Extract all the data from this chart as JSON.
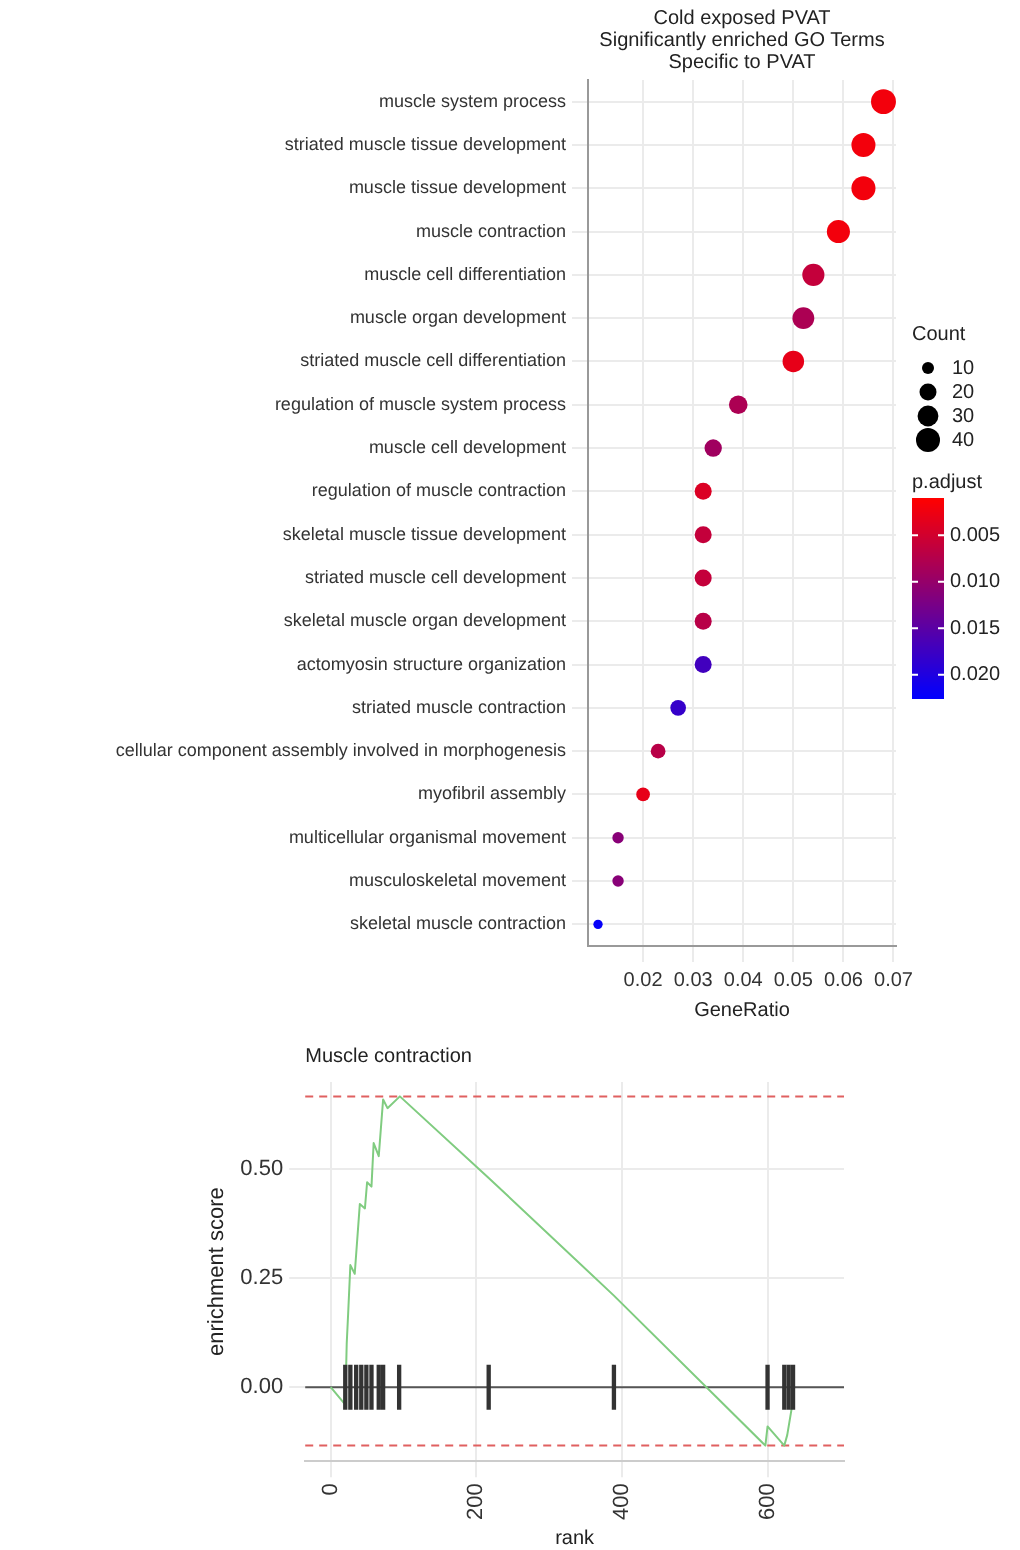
{
  "chart_data": [
    {
      "type": "bubble",
      "title": "Cold exposed PVAT\nSignificantly enriched GO Terms\nSpecific to PVAT",
      "orientation": "horizontal",
      "categories": [
        "muscle system process",
        "striated muscle tissue development",
        "muscle tissue development",
        "muscle contraction",
        "muscle cell differentiation",
        "muscle organ development",
        "striated muscle cell differentiation",
        "regulation of muscle system process",
        "muscle cell development",
        "regulation of muscle contraction",
        "skeletal muscle tissue development",
        "striated muscle cell development",
        "skeletal muscle organ development",
        "actomyosin structure organization",
        "striated muscle contraction",
        "cellular component assembly involved in morphogenesis",
        "myofibril assembly",
        "multicellular organismal movement",
        "musculoskeletal movement",
        "skeletal muscle contraction"
      ],
      "values": [
        0.068,
        0.064,
        0.064,
        0.059,
        0.054,
        0.052,
        0.05,
        0.039,
        0.034,
        0.032,
        0.032,
        0.032,
        0.032,
        0.032,
        0.027,
        0.023,
        0.02,
        0.015,
        0.015,
        0.011
      ],
      "sizes": [
        43,
        40,
        40,
        37,
        34,
        33,
        32,
        24,
        21,
        20,
        20,
        20,
        20,
        20,
        17,
        15,
        13,
        9,
        9,
        6
      ],
      "cvalues": [
        0.002,
        0.002,
        0.002,
        0.002,
        0.006,
        0.008,
        0.003,
        0.008,
        0.009,
        0.004,
        0.006,
        0.006,
        0.007,
        0.017,
        0.018,
        0.007,
        0.003,
        0.011,
        0.011,
        0.022
      ],
      "size_legend": [
        10,
        20,
        30,
        40
      ],
      "legend_title": "Count",
      "clabel": "p.adjust",
      "clim": [
        0.001,
        0.0225
      ],
      "cticks": [
        {
          "value": 0.005,
          "label": "0.005"
        },
        {
          "value": 0.01,
          "label": "0.010"
        },
        {
          "value": 0.015,
          "label": "0.015"
        },
        {
          "value": 0.02,
          "label": "0.020"
        }
      ],
      "xlim": [
        0.009,
        0.0705
      ],
      "xticks": [
        0.02,
        0.03,
        0.04,
        0.05,
        0.06,
        0.07
      ],
      "xlabel": "GeneRatio",
      "grid": true
    },
    {
      "type": "line",
      "title": "Muscle contraction",
      "xlabel": "rank",
      "ylabel": "enrichment score",
      "series": [
        {
          "type": "line",
          "color": "#80cc80",
          "marker": "none",
          "x": [
            0,
            20,
            22,
            24,
            27,
            33,
            40,
            47,
            50,
            56,
            59,
            66,
            72,
            78,
            95,
            217,
            389,
            597,
            600,
            623,
            627,
            634
          ],
          "values": [
            0,
            -0.04,
            0.1,
            0.17,
            0.28,
            0.26,
            0.42,
            0.41,
            0.47,
            0.46,
            0.56,
            0.53,
            0.66,
            0.64,
            0.667,
            0.48,
            0.21,
            -0.134,
            -0.09,
            -0.134,
            -0.11,
            -0.04
          ]
        },
        {
          "type": "bar",
          "color": "#333333",
          "x": [
            20,
            27,
            35,
            42,
            49,
            56,
            66,
            72,
            94,
            217,
            389,
            600,
            623,
            629,
            635
          ],
          "values": [
            0.1,
            0.1,
            0.1,
            0.1,
            0.1,
            0.1,
            0.1,
            0.1,
            0.1,
            0.1,
            0.1,
            0.1,
            0.1,
            0.1,
            0.1
          ],
          "base": [
            -0.05,
            -0.05,
            -0.05,
            -0.05,
            -0.05,
            -0.05,
            -0.05,
            -0.05,
            -0.05,
            -0.05,
            -0.05,
            -0.05,
            -0.05,
            -0.05,
            -0.05
          ]
        }
      ],
      "ref_lines": [
        {
          "axis": "y",
          "value": 0.667,
          "color": "#e06060",
          "line_style": "dashed"
        },
        {
          "axis": "y",
          "value": -0.134,
          "color": "#e06060",
          "line_style": "dashed"
        },
        {
          "axis": "y",
          "value": 0,
          "color": "#555555",
          "line_style": "solid"
        }
      ],
      "xlim": [
        -35,
        705
      ],
      "xticks": [
        0,
        200,
        400,
        600
      ],
      "ylim": [
        -0.17,
        0.7
      ],
      "yticks": [
        {
          "value": 0,
          "label": "0.00"
        },
        {
          "value": 0.25,
          "label": "0.25"
        },
        {
          "value": 0.5,
          "label": "0.50"
        }
      ],
      "grid": true
    }
  ]
}
